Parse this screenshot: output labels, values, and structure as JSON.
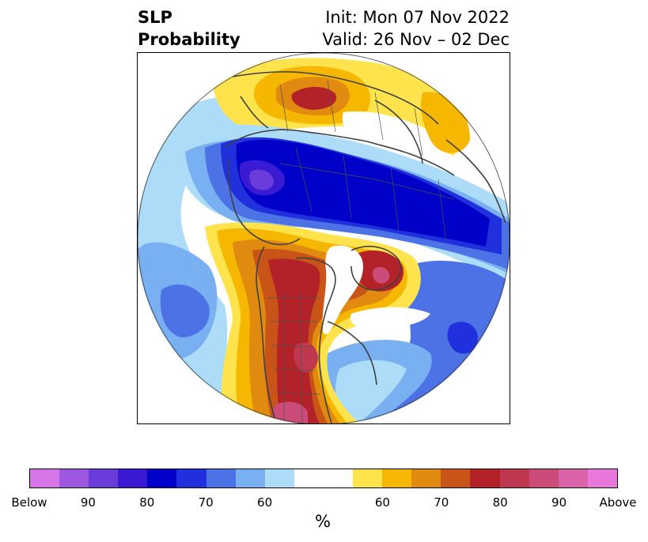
{
  "title": {
    "left_line1": "SLP",
    "left_line2": "Probability",
    "right_line1": "Init: Mon 07 Nov 2022",
    "right_line2": "Valid: 26 Nov – 02 Dec"
  },
  "colorbar": {
    "colors": [
      "#d676e8",
      "#9e57e0",
      "#6a3cd9",
      "#3a1ad3",
      "#0000c8",
      "#2030dd",
      "#4d72e6",
      "#78b0f2",
      "#acdcf8",
      "#ffffff",
      "#ffffff",
      "#fee34d",
      "#f5b700",
      "#e08a10",
      "#c85418",
      "#b22228",
      "#c03850",
      "#cb4c78",
      "#da62a8",
      "#e878dc"
    ],
    "tick_labels": [
      "Below",
      "90",
      "80",
      "70",
      "60",
      "60",
      "70",
      "80",
      "90",
      "Above"
    ],
    "unit": "%"
  }
}
